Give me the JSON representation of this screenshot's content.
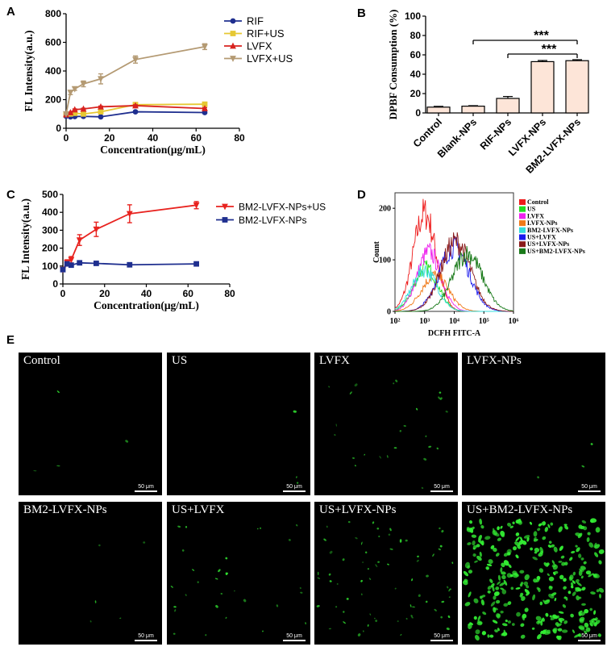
{
  "panel_labels": {
    "A": "A",
    "B": "B",
    "C": "C",
    "D": "D",
    "E": "E"
  },
  "colors": {
    "RIF": "#1f2f8f",
    "RIF_US": "#e6c833",
    "LVFX": "#d8231f",
    "LVFX_US": "#b49a73",
    "BM2_LVFX_NPs_US": "#e8231f",
    "BM2_LVFX_NPs": "#1f2f8f",
    "bar_fill": "#fde5d8",
    "fluor": "#33ee33"
  },
  "chart_data": [
    {
      "id": "A",
      "type": "line",
      "xlabel": "Concentration(μg/mL)",
      "ylabel": "FL Intensity(a.u.)",
      "xlim": [
        0,
        80
      ],
      "ylim": [
        0,
        800
      ],
      "xticks": [
        0,
        20,
        40,
        60,
        80
      ],
      "yticks": [
        0,
        200,
        400,
        600,
        800
      ],
      "x": [
        0,
        2,
        4,
        8,
        16,
        32,
        64
      ],
      "legend_position": "top-right",
      "series": [
        {
          "name": "RIF",
          "marker": "circle",
          "values": [
            85,
            80,
            82,
            83,
            80,
            115,
            110
          ],
          "err": [
            3,
            3,
            3,
            3,
            3,
            5,
            5
          ]
        },
        {
          "name": "RIF+US",
          "marker": "square",
          "values": [
            95,
            100,
            105,
            100,
            115,
            165,
            168
          ],
          "err": [
            4,
            4,
            4,
            4,
            5,
            6,
            6
          ]
        },
        {
          "name": "LVFX",
          "marker": "triangle-up",
          "values": [
            95,
            110,
            130,
            135,
            150,
            158,
            138
          ],
          "err": [
            4,
            4,
            5,
            5,
            5,
            6,
            6
          ]
        },
        {
          "name": "LVFX+US",
          "marker": "triangle-down",
          "values": [
            100,
            250,
            275,
            310,
            345,
            480,
            570
          ],
          "err": [
            5,
            15,
            10,
            20,
            35,
            25,
            20
          ]
        }
      ]
    },
    {
      "id": "B",
      "type": "bar",
      "ylabel": "DPBF Consumption (%)",
      "ylim": [
        0,
        100
      ],
      "yticks": [
        0,
        20,
        40,
        60,
        80,
        100
      ],
      "categories": [
        "Control",
        "Blank-NPs",
        "RIF-NPs",
        "LVFX-NPs",
        "BM2-LVFX-NPs"
      ],
      "values": [
        6,
        7,
        15,
        53,
        54
      ],
      "err": [
        0.8,
        0.5,
        2,
        1.2,
        1
      ],
      "significance": [
        {
          "from": "Blank-NPs",
          "to": "BM2-LVFX-NPs",
          "label": "***"
        },
        {
          "from": "RIF-NPs",
          "to": "BM2-LVFX-NPs",
          "label": "***"
        }
      ]
    },
    {
      "id": "C",
      "type": "line",
      "xlabel": "Concentration(μg/mL)",
      "ylabel": "FL Intensity(a.u.)",
      "xlim": [
        0,
        80
      ],
      "ylim": [
        0,
        500
      ],
      "xticks": [
        0,
        20,
        40,
        60,
        80
      ],
      "yticks": [
        0,
        100,
        200,
        300,
        400,
        500
      ],
      "x": [
        0,
        2,
        4,
        8,
        16,
        32,
        64
      ],
      "legend_position": "top-right",
      "series": [
        {
          "name": "BM2-LVFX-NPs+US",
          "marker": "triangle-down",
          "values": [
            80,
            120,
            135,
            245,
            305,
            392,
            440
          ],
          "err": [
            5,
            15,
            18,
            30,
            40,
            50,
            20
          ]
        },
        {
          "name": "BM2-LVFX-NPs",
          "marker": "square",
          "values": [
            80,
            112,
            105,
            118,
            115,
            107,
            112
          ],
          "err": [
            4,
            5,
            5,
            5,
            4,
            4,
            4
          ]
        }
      ]
    },
    {
      "id": "D",
      "type": "histogram",
      "xlabel": "DCFH FITC-A",
      "ylabel": "Count",
      "ylim": [
        0,
        230
      ],
      "yticks": [
        0,
        100,
        200
      ],
      "xticks": [
        "10²",
        "10³",
        "10⁴",
        "10⁵",
        "10⁶"
      ],
      "legend_position": "right",
      "series": [
        {
          "name": "Control",
          "color": "#ee1c1c",
          "peak_log": 3.0,
          "height": 190,
          "width": 0.38
        },
        {
          "name": "US",
          "color": "#22dd22",
          "peak_log": 3.05,
          "height": 85,
          "width": 0.4
        },
        {
          "name": "LVFX",
          "color": "#ee22ee",
          "peak_log": 3.15,
          "height": 115,
          "width": 0.4
        },
        {
          "name": "LVFX-NPs",
          "color": "#f07a1a",
          "peak_log": 3.35,
          "height": 70,
          "width": 0.45
        },
        {
          "name": "BM2-LVFX-NPs",
          "color": "#33dddd",
          "peak_log": 3.0,
          "height": 80,
          "width": 0.42
        },
        {
          "name": "US+LVFX",
          "color": "#1a1aee",
          "peak_log": 4.0,
          "height": 125,
          "width": 0.5
        },
        {
          "name": "US+LVFX-NPs",
          "color": "#8a1a1a",
          "peak_log": 4.05,
          "height": 135,
          "width": 0.5
        },
        {
          "name": "US+BM2-LVFX-NPs",
          "color": "#1a7a1a",
          "peak_log": 4.45,
          "height": 112,
          "width": 0.5
        }
      ]
    }
  ],
  "micrographs": [
    {
      "label": "Control",
      "scale": "50 μm",
      "density": 4
    },
    {
      "label": "US",
      "scale": "50 μm",
      "density": 3
    },
    {
      "label": "LVFX",
      "scale": "50 μm",
      "density": 25
    },
    {
      "label": "LVFX-NPs",
      "scale": "50 μm",
      "density": 3
    },
    {
      "label": "BM2-LVFX-NPs",
      "scale": "50 μm",
      "density": 5
    },
    {
      "label": "US+LVFX",
      "scale": "50 μm",
      "density": 30
    },
    {
      "label": "US+LVFX-NPs",
      "scale": "50 μm",
      "density": 70
    },
    {
      "label": "US+BM2-LVFX-NPs",
      "scale": "50 μm",
      "density": 320
    }
  ]
}
